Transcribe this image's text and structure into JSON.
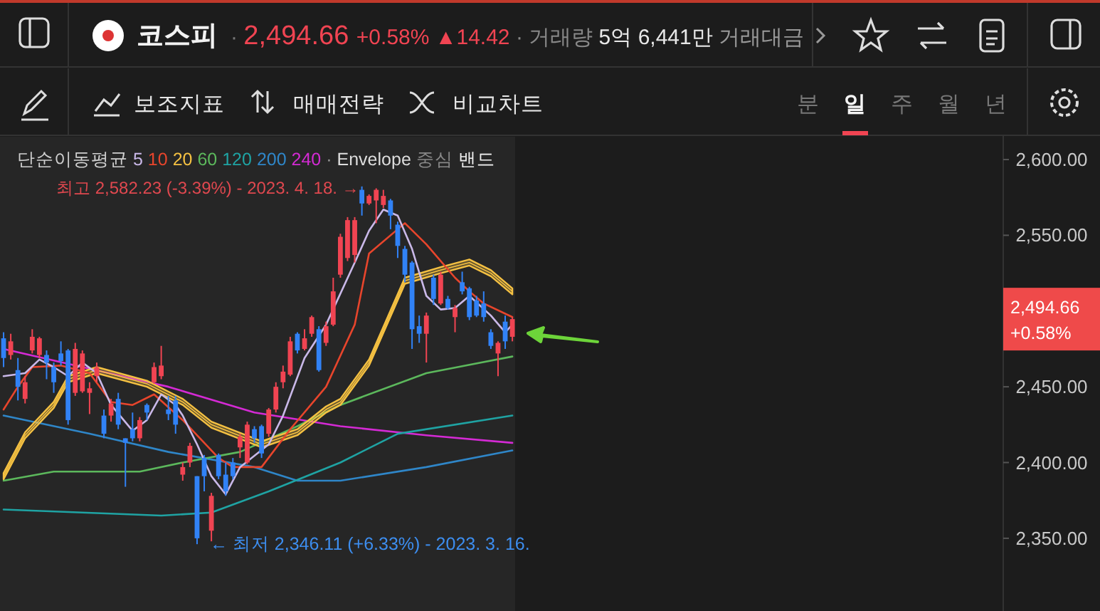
{
  "chart_data": {
    "type": "candlestick",
    "title": "코스피",
    "subtitle": "· 2,494.66 +0.58% ▲14.42 · 거래량 5억 6,441만 거래대금",
    "legend_title": "단순이동평균",
    "legend": "top left",
    "categories": [
      null,
      null,
      null,
      null,
      null,
      null,
      null,
      null,
      null,
      null,
      null,
      null,
      null,
      null,
      null,
      null,
      null,
      null,
      null,
      null,
      null,
      null,
      null,
      null,
      null,
      null,
      null,
      null,
      null,
      null,
      null,
      null,
      null,
      null,
      null,
      null,
      null,
      null,
      null,
      null,
      null,
      null,
      null,
      null,
      null,
      null,
      null,
      null,
      null,
      null,
      null,
      null,
      null,
      null,
      null,
      null,
      null,
      null,
      null,
      null,
      null,
      null,
      null,
      null,
      null,
      null,
      null,
      null,
      null,
      null,
      null,
      null,
      null,
      null,
      null,
      null,
      null,
      null,
      null,
      null,
      null,
      null,
      null,
      null,
      null,
      null,
      null,
      null,
      null,
      null,
      null,
      null,
      null,
      null,
      null,
      null,
      null,
      null,
      null,
      null,
      null,
      null,
      null,
      null,
      null,
      null,
      null,
      null,
      null,
      null,
      null,
      null,
      null,
      null,
      null,
      null,
      null,
      null,
      null,
      null,
      null,
      null,
      null,
      null,
      null,
      null,
      null,
      null,
      null,
      null,
      null,
      null,
      null,
      null,
      null,
      null,
      null,
      null,
      null,
      null
    ],
    "ohlc": [
      [
        2482,
        2486,
        2463,
        2469
      ],
      [
        2471,
        2485,
        2468,
        2480
      ],
      [
        2461,
        2469,
        2441,
        2450
      ],
      [
        2442,
        2457,
        2439,
        2453
      ],
      [
        2474,
        2488,
        2472,
        2483
      ],
      [
        2471,
        2483,
        2469,
        2482
      ],
      [
        2471,
        2474,
        2455,
        2466
      ],
      [
        2463,
        2466,
        2446,
        2453
      ],
      [
        2472,
        2480,
        2464,
        2467
      ],
      [
        2474,
        2475,
        2425,
        2428
      ],
      [
        2446,
        2479,
        2444,
        2475
      ],
      [
        2447,
        2474,
        2446,
        2472
      ],
      [
        2446,
        2453,
        2432,
        2449
      ],
      [
        2457,
        2466,
        2453,
        2463
      ],
      [
        2431,
        2435,
        2416,
        2419
      ],
      [
        2431,
        2442,
        2427,
        2439
      ],
      [
        2442,
        2446,
        2422,
        2425
      ],
      [
        2416,
        2416,
        2384,
        2413
      ],
      [
        2422,
        2433,
        2414,
        2416
      ],
      [
        2416,
        2430,
        2414,
        2428
      ],
      [
        2438,
        2439,
        2428,
        2433
      ],
      [
        2453,
        2466,
        2452,
        2463
      ],
      [
        2457,
        2477,
        2455,
        2464
      ],
      [
        2435,
        2444,
        2428,
        2432
      ],
      [
        2441,
        2444,
        2419,
        2425
      ],
      [
        2392,
        2400,
        2388,
        2397
      ],
      [
        2400,
        2413,
        2397,
        2411
      ],
      [
        2391,
        2391,
        2346.11,
        2350
      ],
      [
        2403,
        2405,
        2381,
        2391
      ],
      [
        2355,
        2380,
        2348,
        2378
      ],
      [
        2405,
        2406,
        2389,
        2391
      ],
      [
        2392,
        2400,
        2378,
        2381
      ],
      [
        2400,
        2403,
        2389,
        2391
      ],
      [
        2410,
        2419,
        2403,
        2417
      ],
      [
        2400,
        2427,
        2399,
        2425
      ],
      [
        2422,
        2424,
        2413,
        2416
      ],
      [
        2424,
        2425,
        2403,
        2406
      ],
      [
        2419,
        2436,
        2417,
        2435
      ],
      [
        2435,
        2453,
        2433,
        2450
      ],
      [
        2453,
        2464,
        2449,
        2460
      ],
      [
        2458,
        2483,
        2457,
        2480
      ],
      [
        2485,
        2486,
        2472,
        2474
      ],
      [
        2475,
        2488,
        2474,
        2482
      ],
      [
        2485,
        2497,
        2483,
        2496
      ],
      [
        2488,
        2490,
        2460,
        2461
      ],
      [
        2479,
        2493,
        2477,
        2490
      ],
      [
        2491,
        2522,
        2490,
        2513
      ],
      [
        2524,
        2551,
        2522,
        2549
      ],
      [
        2535,
        2562,
        2533,
        2560
      ],
      [
        2537,
        2562,
        2532,
        2560
      ],
      [
        2580,
        2582.23,
        2563,
        2571
      ],
      [
        2571,
        2577,
        2570,
        2576
      ],
      [
        2573,
        2581,
        2558,
        2580
      ],
      [
        2570,
        2580,
        2568,
        2576
      ],
      [
        2573,
        2574,
        2554,
        2563
      ],
      [
        2557,
        2559,
        2535,
        2543
      ],
      [
        2541,
        2543,
        2519,
        2524
      ],
      [
        2532,
        2533,
        2475,
        2488
      ],
      [
        2490,
        2497,
        2479,
        2485
      ],
      [
        2485,
        2499,
        2466,
        2497
      ],
      [
        2522,
        2524,
        2504,
        2508
      ],
      [
        2505,
        2526,
        2504,
        2524
      ],
      [
        2508,
        2510,
        2501,
        2502
      ],
      [
        2496,
        2504,
        2486,
        2502
      ],
      [
        2519,
        2526,
        2511,
        2513
      ],
      [
        2515,
        2516,
        2494,
        2496
      ],
      [
        2507,
        2510,
        2496,
        2497
      ],
      [
        2505,
        2513,
        2493,
        2496
      ],
      [
        2486,
        2488,
        2475,
        2477
      ],
      [
        2472,
        2480,
        2457,
        2479
      ],
      [
        2493,
        2497,
        2475,
        2480
      ],
      [
        2483,
        2496,
        2480,
        2494.66
      ],
      null,
      null,
      null,
      null,
      null,
      null,
      null,
      null,
      null,
      null,
      null,
      null,
      null,
      null,
      null,
      null,
      null,
      null,
      null,
      null,
      null,
      null,
      null,
      null,
      null,
      null,
      null,
      null,
      null,
      null,
      null,
      null,
      null,
      null,
      null,
      null,
      null,
      null,
      null,
      null,
      null,
      null,
      null,
      null,
      null,
      null,
      null,
      null,
      null,
      null,
      null,
      null,
      null,
      null,
      null,
      null,
      null,
      null,
      null,
      null,
      null,
      null,
      null,
      null,
      null,
      null,
      null,
      null
    ],
    "colors": [
      "#3182f6",
      "#f04452",
      "#3182f6",
      "#f04452",
      "#f04452",
      "#f04452",
      "#3182f6",
      "#3182f6",
      "#3182f6",
      "#3182f6",
      "#f04452",
      "#f04452",
      "#f04452",
      "#f04452",
      "#3182f6",
      "#f04452",
      "#3182f6",
      "#3182f6",
      "#3182f6",
      "#f04452",
      "#3182f6",
      "#f04452",
      "#f04452",
      "#3182f6",
      "#3182f6",
      "#f04452",
      "#f04452",
      "#3182f6",
      "#3182f6",
      "#f04452",
      "#3182f6",
      "#3182f6",
      "#3182f6",
      "#f04452",
      "#f04452",
      "#3182f6",
      "#3182f6",
      "#f04452",
      "#f04452",
      "#f04452",
      "#f04452",
      "#3182f6",
      "#f04452",
      "#f04452",
      "#3182f6",
      "#f04452",
      "#f04452",
      "#f04452",
      "#f04452",
      "#f04452",
      "#3182f6",
      "#f04452",
      "#f04452",
      "#f04452",
      "#3182f6",
      "#3182f6",
      "#3182f6",
      "#3182f6",
      "#3182f6",
      "#f04452",
      "#3182f6",
      "#f04452",
      "#3182f6",
      "#f04452",
      "#3182f6",
      "#3182f6",
      "#3182f6",
      "#3182f6",
      "#3182f6",
      "#f04452",
      "#3182f6",
      "#f04452",
      null,
      null,
      null,
      null,
      null,
      null,
      null,
      null,
      null,
      null,
      null,
      null,
      null,
      null,
      null,
      null,
      null,
      null,
      null,
      null,
      null,
      null,
      null,
      null,
      null,
      null,
      null,
      null,
      null,
      null,
      null,
      null,
      null,
      null,
      null,
      null,
      null,
      null,
      null,
      null,
      null,
      null,
      null,
      null,
      null,
      null,
      null,
      null,
      null,
      null,
      null,
      null,
      null,
      null,
      null,
      null,
      null,
      null,
      null,
      null,
      null,
      null,
      null,
      null,
      null,
      null,
      null,
      null
    ],
    "series": [
      {
        "name": "5",
        "type": "line",
        "color": "#c9b8e8",
        "values": [
          2457,
          null,
          null,
          2459,
          null,
          2468,
          null,
          2463,
          null,
          2457,
          null,
          2466,
          null,
          2459,
          null,
          2438,
          null,
          null,
          2421,
          null,
          2428,
          null,
          2445,
          null,
          2438,
          2431,
          null,
          2412,
          null,
          2391,
          null,
          2379,
          null,
          2397,
          null,
          null,
          null,
          2412,
          null,
          2431,
          null,
          null,
          2469,
          null,
          null,
          2491,
          null,
          null,
          null,
          2532,
          null,
          2553,
          null,
          2567,
          null,
          2563,
          null,
          2541,
          null,
          2510,
          null,
          2501,
          null,
          2502,
          null,
          2510,
          null,
          null,
          2497,
          null,
          2486,
          2491,
          null,
          null,
          null,
          null,
          null,
          null,
          null,
          null,
          null,
          null,
          null,
          null,
          null,
          null,
          null,
          null,
          null,
          null,
          null,
          null,
          null,
          null,
          null,
          null,
          null,
          null,
          null,
          null,
          null,
          null,
          null,
          null,
          null,
          null,
          null,
          null,
          null,
          null,
          null,
          null,
          null,
          null,
          null,
          null,
          null,
          null,
          null,
          null,
          null,
          null,
          null,
          null,
          null,
          null,
          null,
          null,
          null,
          null,
          null,
          null,
          null,
          null,
          null,
          null,
          null,
          null,
          null,
          null
        ]
      },
      {
        "name": "10",
        "type": "line",
        "color": "#e8452c",
        "values": [
          2435,
          null,
          2450,
          null,
          2463,
          null,
          null,
          null,
          2464,
          null,
          null,
          null,
          2459,
          null,
          null,
          2440,
          null,
          null,
          2438,
          null,
          null,
          2445,
          null,
          null,
          null,
          2428,
          null,
          null,
          null,
          null,
          2403,
          null,
          2397,
          null,
          null,
          null,
          2397,
          null,
          null,
          null,
          2422,
          null,
          null,
          null,
          null,
          2450,
          null,
          null,
          null,
          2491,
          null,
          2538,
          null,
          null,
          null,
          null,
          2558,
          null,
          null,
          2544,
          null,
          null,
          null,
          2522,
          null,
          2513,
          null,
          2505,
          null,
          null,
          null,
          2496,
          null,
          null,
          null,
          null,
          null,
          null,
          null,
          null,
          null,
          null,
          null,
          null,
          null,
          null,
          null,
          null,
          null,
          null,
          null,
          null,
          null,
          null,
          null,
          null,
          null,
          null,
          null,
          null,
          null,
          null,
          null,
          null,
          null,
          null,
          null,
          null,
          null,
          null,
          null,
          null,
          null,
          null,
          null,
          null,
          null,
          null,
          null,
          null,
          null,
          null,
          null,
          null,
          null,
          null,
          null,
          null,
          null,
          null,
          null,
          null,
          null,
          null,
          null,
          null,
          null,
          null,
          null,
          null
        ]
      },
      {
        "name": "20",
        "type": "line",
        "color": "#f5c142",
        "values": [
          2391,
          null,
          null,
          2418,
          null,
          null,
          null,
          2438,
          null,
          2455,
          null,
          null,
          null,
          2461,
          null,
          null,
          null,
          null,
          null,
          null,
          2452,
          null,
          null,
          null,
          null,
          2440,
          null,
          null,
          null,
          2425,
          null,
          null,
          null,
          null,
          null,
          null,
          2412,
          null,
          null,
          null,
          null,
          2420,
          null,
          null,
          null,
          2435,
          null,
          2440,
          null,
          null,
          null,
          2466,
          null,
          null,
          null,
          null,
          2520,
          null,
          null,
          null,
          null,
          2527,
          null,
          null,
          null,
          2532,
          null,
          null,
          2525,
          null,
          null,
          2513,
          null,
          null,
          null,
          null,
          null,
          null,
          null,
          null,
          null,
          null,
          null,
          null,
          null,
          null,
          null,
          null,
          null,
          null,
          null,
          null,
          null,
          null,
          null,
          null,
          null,
          null,
          null,
          null,
          null,
          null,
          null,
          null,
          null,
          null,
          null,
          null,
          null,
          null,
          null,
          null,
          null,
          null,
          null,
          null,
          null,
          null,
          null,
          null,
          null,
          null,
          null,
          null,
          null,
          null,
          null,
          null,
          null,
          null,
          null,
          null,
          null,
          null,
          null,
          null,
          null,
          null,
          null,
          null
        ],
        "lower": [
          2389,
          null,
          null,
          2416,
          null,
          null,
          null,
          2436,
          null,
          2453,
          null,
          null,
          null,
          2459,
          null,
          null,
          null,
          null,
          null,
          null,
          2450,
          null,
          null,
          null,
          null,
          2438,
          null,
          null,
          null,
          2423,
          null,
          null,
          null,
          null,
          null,
          null,
          2410,
          null,
          null,
          null,
          null,
          2418,
          null,
          null,
          null,
          2433,
          null,
          2438,
          null,
          null,
          null,
          2464,
          null,
          null,
          null,
          null,
          2518,
          null,
          null,
          null,
          null,
          2525,
          null,
          null,
          null,
          2530,
          null,
          null,
          2523,
          null,
          null,
          2511,
          null,
          null,
          null,
          null,
          null,
          null,
          null,
          null,
          null,
          null,
          null,
          null,
          null,
          null,
          null,
          null,
          null,
          null,
          null,
          null,
          null,
          null,
          null,
          null,
          null,
          null,
          null,
          null,
          null,
          null,
          null,
          null,
          null,
          null,
          null,
          null,
          null,
          null,
          null,
          null,
          null,
          null,
          null,
          null,
          null,
          null,
          null,
          null,
          null,
          null,
          null,
          null,
          null,
          null,
          null,
          null,
          null,
          null,
          null,
          null,
          null,
          null,
          null,
          null,
          null,
          null,
          null,
          null
        ],
        "upper": [
          2393,
          null,
          null,
          2420,
          null,
          null,
          null,
          2440,
          null,
          2457,
          null,
          null,
          null,
          2463,
          null,
          null,
          null,
          null,
          null,
          null,
          2454,
          null,
          null,
          null,
          null,
          2442,
          null,
          null,
          null,
          2427,
          null,
          null,
          null,
          null,
          null,
          null,
          2414,
          null,
          null,
          null,
          null,
          2422,
          null,
          null,
          null,
          2437,
          null,
          2442,
          null,
          null,
          null,
          2468,
          null,
          null,
          null,
          null,
          2522,
          null,
          null,
          null,
          null,
          2529,
          null,
          null,
          null,
          2534,
          null,
          null,
          2527,
          null,
          null,
          2515,
          null,
          null,
          null,
          null,
          null,
          null,
          null,
          null,
          null,
          null,
          null,
          null,
          null,
          null,
          null,
          null,
          null,
          null,
          null,
          null,
          null,
          null,
          null,
          null,
          null,
          null,
          null,
          null,
          null,
          null,
          null,
          null,
          null,
          null,
          null,
          null,
          null,
          null,
          null,
          null,
          null,
          null,
          null,
          null,
          null,
          null,
          null,
          null,
          null,
          null,
          null,
          null,
          null,
          null,
          null,
          null,
          null,
          null,
          null,
          null,
          null,
          null,
          null,
          null,
          null,
          null,
          null,
          null
        ]
      },
      {
        "name": "60",
        "type": "line",
        "color": "#5cb85c",
        "values": [
          2388,
          null,
          null,
          null,
          null,
          null,
          null,
          2394,
          null,
          null,
          null,
          null,
          null,
          null,
          null,
          null,
          null,
          null,
          null,
          2394,
          null,
          null,
          null,
          null,
          null,
          2400,
          null,
          null,
          null,
          null,
          null,
          null,
          null,
          2407,
          null,
          null,
          null,
          null,
          null,
          null,
          null,
          2424,
          null,
          null,
          null,
          null,
          null,
          2438,
          null,
          null,
          null,
          null,
          null,
          null,
          null,
          null,
          null,
          null,
          null,
          2459,
          null,
          null,
          null,
          null,
          null,
          null,
          null,
          null,
          null,
          null,
          null,
          2470,
          null,
          null,
          null,
          null,
          null,
          null,
          null,
          null,
          null,
          null,
          null,
          null,
          null,
          null,
          null,
          null,
          null,
          null,
          null,
          null,
          null,
          null,
          null,
          null,
          null,
          null,
          null,
          null,
          null,
          null,
          null,
          null,
          null,
          null,
          null,
          null,
          null,
          null,
          null,
          null,
          null,
          null,
          null,
          null,
          null,
          null,
          null,
          null,
          null,
          null,
          null,
          null,
          null,
          null,
          null,
          null,
          null,
          null,
          null,
          null,
          null,
          null,
          null,
          null,
          null,
          null,
          null,
          null
        ]
      },
      {
        "name": "120",
        "type": "line",
        "color": "#1fa3a3",
        "values": [
          2369,
          null,
          null,
          null,
          null,
          null,
          null,
          null,
          null,
          null,
          null,
          null,
          null,
          null,
          null,
          null,
          null,
          null,
          null,
          null,
          null,
          null,
          2365,
          null,
          null,
          null,
          null,
          null,
          null,
          2367,
          null,
          null,
          null,
          null,
          null,
          null,
          null,
          2381,
          null,
          null,
          null,
          null,
          null,
          null,
          null,
          null,
          null,
          2400,
          null,
          null,
          null,
          null,
          null,
          null,
          null,
          2419,
          null,
          null,
          null,
          null,
          null,
          null,
          null,
          null,
          null,
          null,
          null,
          null,
          null,
          null,
          null,
          2431,
          null,
          null,
          null,
          null,
          null,
          null,
          null,
          null,
          null,
          null,
          null,
          null,
          null,
          null,
          null,
          null,
          null,
          null,
          null,
          null,
          null,
          null,
          null,
          null,
          null,
          null,
          null,
          null,
          null,
          null,
          null,
          null,
          null,
          null,
          null,
          null,
          null,
          null,
          null,
          null,
          null,
          null,
          null,
          null,
          null,
          null,
          null,
          null,
          null,
          null,
          null,
          null,
          null,
          null,
          null,
          null,
          null,
          null,
          null,
          null,
          null,
          null,
          null,
          null,
          null,
          null,
          null,
          null
        ]
      },
      {
        "name": "200",
        "type": "line",
        "color": "#2f86c8",
        "values": [
          2431,
          null,
          null,
          null,
          null,
          null,
          null,
          null,
          null,
          null,
          null,
          null,
          2419,
          null,
          null,
          null,
          null,
          null,
          null,
          null,
          null,
          null,
          null,
          2407,
          null,
          null,
          null,
          null,
          null,
          null,
          null,
          null,
          null,
          null,
          null,
          2397,
          null,
          null,
          null,
          null,
          null,
          2388,
          null,
          null,
          null,
          null,
          null,
          2388,
          null,
          null,
          null,
          null,
          null,
          null,
          null,
          null,
          null,
          null,
          null,
          2397,
          null,
          null,
          null,
          null,
          null,
          null,
          null,
          null,
          null,
          null,
          null,
          2408,
          null,
          null,
          null,
          null,
          null,
          null,
          null,
          null,
          null,
          null,
          null,
          null,
          null,
          null,
          null,
          null,
          null,
          null,
          null,
          null,
          null,
          null,
          null,
          null,
          null,
          null,
          null,
          null,
          null,
          null,
          null,
          null,
          null,
          null,
          null,
          null,
          null,
          null,
          null,
          null,
          null,
          null,
          null,
          null,
          null,
          null,
          null,
          null,
          null,
          null,
          null,
          null,
          null,
          null,
          null,
          null,
          null,
          null,
          null,
          null,
          null,
          null,
          null,
          null,
          null,
          null,
          null,
          null
        ]
      },
      {
        "name": "240",
        "type": "line",
        "color": "#d42ad4",
        "values": [
          2475,
          null,
          null,
          null,
          null,
          null,
          null,
          null,
          null,
          null,
          null,
          2463,
          null,
          null,
          null,
          null,
          null,
          null,
          null,
          null,
          null,
          null,
          null,
          2450,
          null,
          null,
          null,
          null,
          null,
          null,
          null,
          null,
          null,
          null,
          null,
          2433,
          null,
          null,
          null,
          null,
          null,
          null,
          null,
          null,
          null,
          null,
          null,
          2424,
          null,
          null,
          null,
          null,
          null,
          null,
          null,
          null,
          null,
          null,
          null,
          2418,
          null,
          null,
          null,
          null,
          null,
          null,
          null,
          null,
          null,
          null,
          null,
          2413,
          null,
          null,
          null,
          null,
          null,
          null,
          null,
          null,
          null,
          null,
          null,
          null,
          null,
          null,
          null,
          null,
          null,
          null,
          null,
          null,
          null,
          null,
          null,
          null,
          null,
          null,
          null,
          null,
          null,
          null,
          null,
          null,
          null,
          null,
          null,
          null,
          null,
          null,
          null,
          null,
          null,
          null,
          null,
          null,
          null,
          null,
          null,
          null,
          null,
          null,
          null,
          null,
          null,
          null,
          null,
          null,
          null,
          null,
          null,
          null,
          null,
          null,
          null,
          null,
          null,
          null,
          null,
          null
        ]
      }
    ],
    "ylim": [
      2302,
      2616
    ],
    "yticks": [
      {
        "value": 2350,
        "label": "2,350.00"
      },
      {
        "value": 2400,
        "label": "2,400.00"
      },
      {
        "value": 2450,
        "label": "2,450.00"
      },
      {
        "value": 2550,
        "label": "2,550.00"
      },
      {
        "value": 2600,
        "label": "2,600.00"
      }
    ],
    "tick_labels": "y",
    "annotations": [
      "보조지표",
      "매매전략",
      "비교차트",
      "분",
      "일",
      "주",
      "월",
      "년",
      "· Envelope 중심 밴드",
      "최고 2,582.23 (-3.39%) - 2023. 4. 18. →",
      "← 최저 2,346.11 (+6.33%) - 2023. 3. 16.",
      "2,494.66\n+0.58%"
    ]
  }
}
